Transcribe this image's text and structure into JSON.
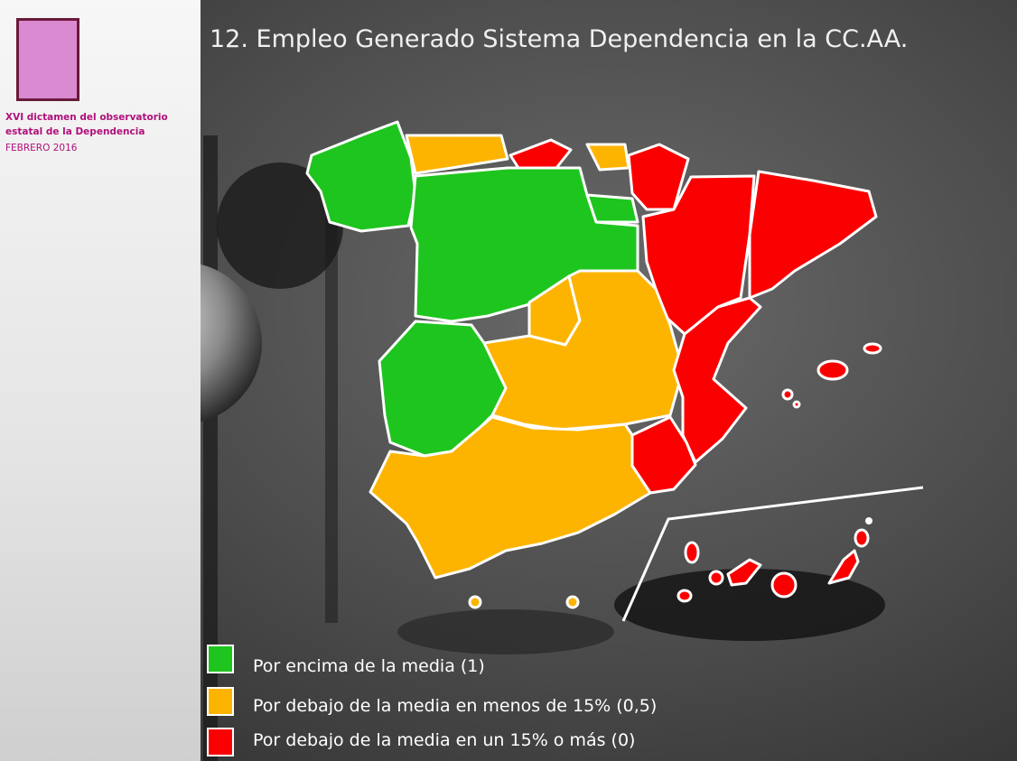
{
  "sidebar": {
    "lines": [
      "XVI dictamen del observatorio",
      "estatal de la Dependencia",
      "FEBRERO 2016"
    ]
  },
  "title": "12.  Empleo Generado Sistema Dependencia en la CC.AA.",
  "legend": [
    {
      "label": "Por encima de la media (1)",
      "color": "#1ec51e"
    },
    {
      "label": "Por debajo de la media en menos de 15% (0,5)",
      "color": "#fdb400"
    },
    {
      "label": "Por debajo de la media en un 15% o más (0)",
      "color": "#fb0000"
    }
  ]
}
